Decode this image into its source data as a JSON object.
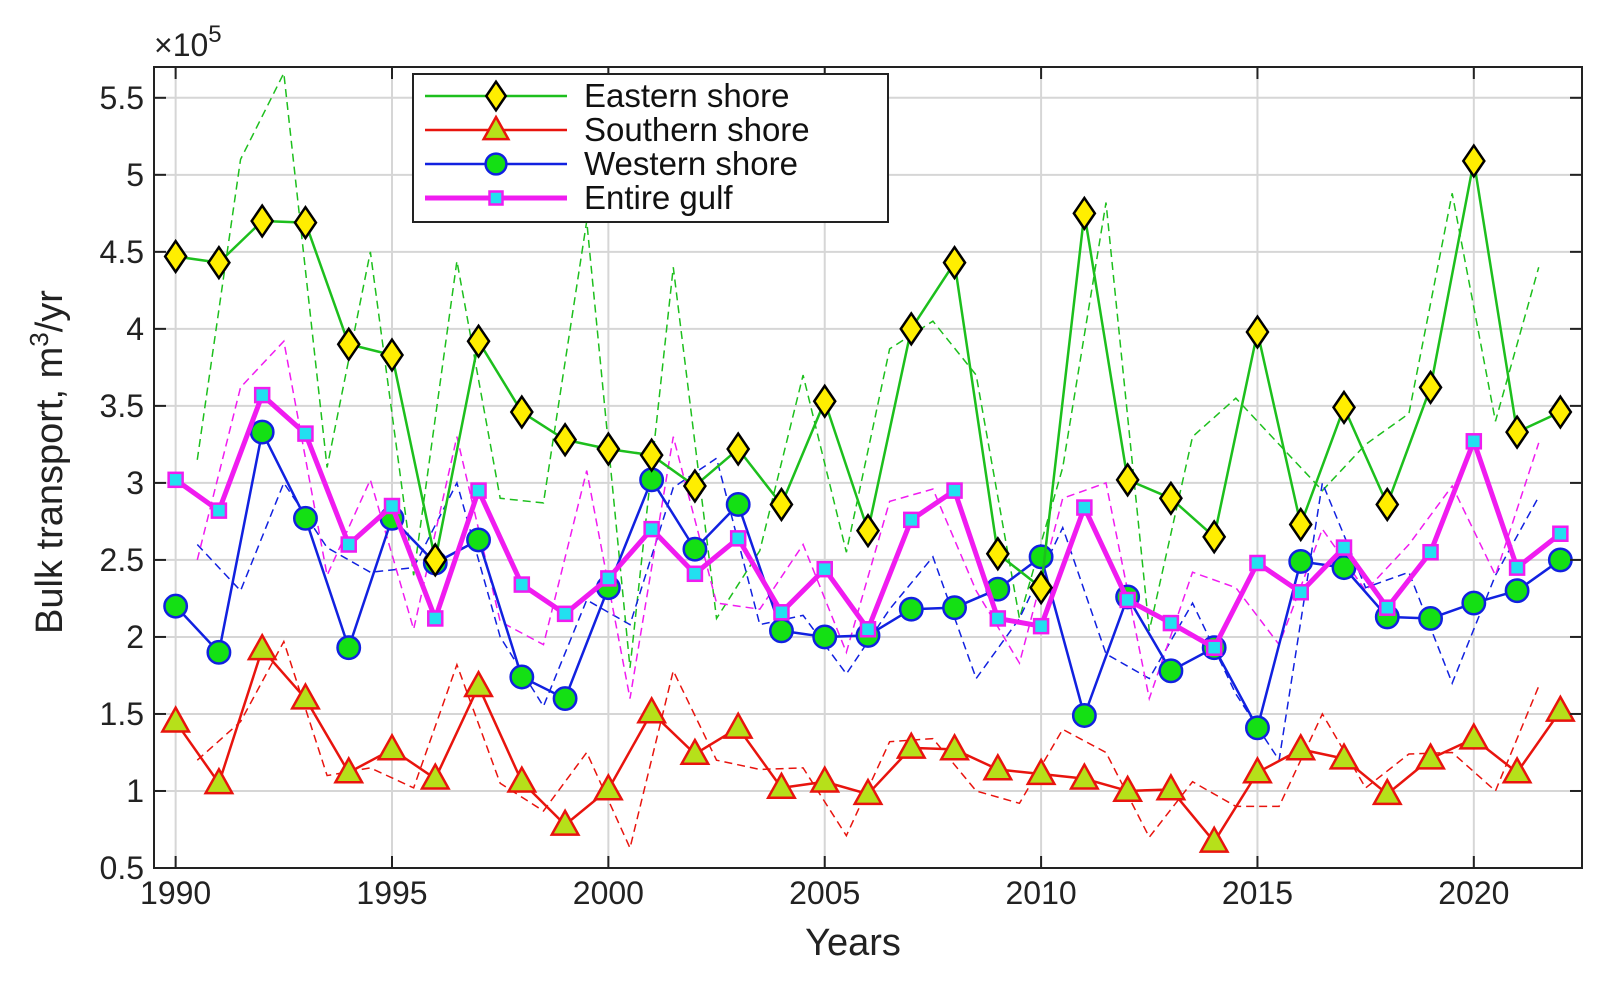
{
  "chart_data": {
    "type": "line",
    "xlabel": "Years",
    "ylabel_main": "Bulk transport, m",
    "ylabel_sup": "3",
    "ylabel_tail": "/yr",
    "exponent_prefix": "×10",
    "exponent_power": "5",
    "xlim": [
      1989.5,
      2022.5
    ],
    "ylim": [
      0.5,
      5.7
    ],
    "x_ticks": [
      1990,
      1995,
      2000,
      2005,
      2010,
      2015,
      2020
    ],
    "y_ticks": [
      0.5,
      1,
      1.5,
      2,
      2.5,
      3,
      3.5,
      4,
      4.5,
      5,
      5.5
    ],
    "grid": true,
    "legend_position": "top-center",
    "x": [
      1990,
      1991,
      1992,
      1993,
      1994,
      1995,
      1996,
      1997,
      1998,
      1999,
      2000,
      2001,
      2002,
      2003,
      2004,
      2005,
      2006,
      2007,
      2008,
      2009,
      2010,
      2011,
      2012,
      2013,
      2014,
      2015,
      2016,
      2017,
      2018,
      2019,
      2020,
      2021,
      2022
    ],
    "series": [
      {
        "name": "Eastern shore",
        "color": "#1dbf1d",
        "marker": "diamond",
        "marker_fill": "#ffee00",
        "marker_edge": "#000000",
        "line_width": 2.5,
        "values": [
          4.47,
          4.43,
          4.7,
          4.69,
          3.9,
          3.83,
          2.5,
          3.92,
          3.46,
          3.28,
          3.22,
          3.18,
          2.98,
          3.22,
          2.86,
          3.53,
          2.69,
          4.0,
          4.43,
          2.54,
          2.32,
          4.75,
          3.02,
          2.9,
          2.65,
          3.98,
          2.73,
          3.49,
          2.86,
          3.62,
          5.09,
          3.33,
          3.46
        ]
      },
      {
        "name": "Southern shore",
        "color": "#e8140e",
        "marker": "triangle",
        "marker_fill": "#b6e01a",
        "marker_edge": "#e8140e",
        "line_width": 2.5,
        "values": [
          1.45,
          1.05,
          1.92,
          1.6,
          1.12,
          1.27,
          1.08,
          1.68,
          1.06,
          0.78,
          1.01,
          1.51,
          1.24,
          1.41,
          1.02,
          1.06,
          0.98,
          1.28,
          1.27,
          1.14,
          1.11,
          1.08,
          1.0,
          1.01,
          0.67,
          1.12,
          1.27,
          1.21,
          0.98,
          1.21,
          1.34,
          1.12,
          1.52
        ]
      },
      {
        "name": "Western shore",
        "color": "#1121e0",
        "marker": "circle",
        "marker_fill": "#14e014",
        "marker_edge": "#1121e0",
        "line_width": 2.5,
        "values": [
          2.2,
          1.9,
          3.33,
          2.77,
          1.93,
          2.77,
          2.48,
          2.63,
          1.74,
          1.6,
          2.32,
          3.02,
          2.57,
          2.86,
          2.04,
          2.0,
          2.01,
          2.18,
          2.19,
          2.31,
          2.52,
          1.49,
          2.26,
          1.78,
          1.93,
          1.41,
          2.49,
          2.45,
          2.13,
          2.12,
          2.22,
          2.3,
          2.5
        ]
      },
      {
        "name": "Entire gulf",
        "color": "#f01cf0",
        "marker": "square",
        "marker_fill": "#22e0f0",
        "marker_edge": "#f01cf0",
        "line_width": 5,
        "values": [
          3.02,
          2.82,
          3.57,
          3.32,
          2.6,
          2.85,
          2.12,
          2.95,
          2.34,
          2.15,
          2.38,
          2.7,
          2.41,
          2.64,
          2.16,
          2.44,
          2.05,
          2.76,
          2.95,
          2.12,
          2.07,
          2.84,
          2.24,
          2.09,
          1.93,
          2.48,
          2.29,
          2.58,
          2.19,
          2.55,
          3.27,
          2.45,
          2.67
        ]
      }
    ],
    "dashed_series": [
      {
        "color": "#1dbf1d",
        "x": [
          1990.5,
          1991.5,
          1992.5,
          1993.5,
          1994.5,
          1995.5,
          1996.5,
          1997.5,
          1998.5,
          1999.5,
          2000.5,
          2001.5,
          2002.5,
          2003.5,
          2004.5,
          2005.5,
          2006.5,
          2007.5,
          2008.5,
          2009.5,
          2010.5,
          2011.5,
          2012.5,
          2013.5,
          2014.5,
          2015.5,
          2016.5,
          2017.5,
          2018.5,
          2019.5,
          2020.5,
          2021.5
        ],
        "values": [
          3.15,
          5.1,
          5.66,
          3.1,
          4.5,
          2.4,
          4.44,
          2.9,
          2.87,
          4.7,
          1.8,
          4.4,
          2.12,
          2.56,
          3.7,
          2.55,
          3.87,
          4.05,
          3.7,
          2.12,
          3.1,
          4.82,
          2.04,
          3.3,
          3.55,
          3.25,
          2.95,
          3.25,
          3.45,
          4.88,
          3.4,
          4.4
        ]
      },
      {
        "color": "#e8140e",
        "x": [
          1990.5,
          1991.5,
          1992.5,
          1993.5,
          1994.5,
          1995.5,
          1996.5,
          1997.5,
          1998.5,
          1999.5,
          2000.5,
          2001.5,
          2002.5,
          2003.5,
          2004.5,
          2005.5,
          2006.5,
          2007.5,
          2008.5,
          2009.5,
          2010.5,
          2011.5,
          2012.5,
          2013.5,
          2014.5,
          2015.5,
          2016.5,
          2017.5,
          2018.5,
          2019.5,
          2020.5,
          2021.5
        ],
        "values": [
          1.2,
          1.45,
          1.97,
          1.1,
          1.15,
          1.02,
          1.82,
          1.05,
          0.87,
          1.25,
          0.63,
          1.78,
          1.2,
          1.14,
          1.15,
          0.71,
          1.32,
          1.34,
          1.0,
          0.92,
          1.4,
          1.25,
          0.7,
          1.06,
          0.9,
          0.9,
          1.5,
          1.02,
          1.24,
          1.25,
          1.0,
          1.68
        ]
      },
      {
        "color": "#1121e0",
        "x": [
          1990.5,
          1991.5,
          1992.5,
          1993.5,
          1994.5,
          1995.5,
          1996.5,
          1997.5,
          1998.5,
          1999.5,
          2000.5,
          2001.5,
          2002.5,
          2003.5,
          2004.5,
          2005.5,
          2006.5,
          2007.5,
          2008.5,
          2009.5,
          2010.5,
          2011.5,
          2012.5,
          2013.5,
          2014.5,
          2015.5,
          2016.5,
          2017.5,
          2018.5,
          2019.5,
          2020.5,
          2021.5
        ],
        "values": [
          2.6,
          2.3,
          3.0,
          2.58,
          2.42,
          2.45,
          3.0,
          2.0,
          1.55,
          2.24,
          2.08,
          2.97,
          3.16,
          2.08,
          2.14,
          1.76,
          2.18,
          2.52,
          1.73,
          2.12,
          2.71,
          1.89,
          1.73,
          2.22,
          1.63,
          1.2,
          3.0,
          2.32,
          2.42,
          1.7,
          2.4,
          2.91
        ]
      },
      {
        "color": "#f01cf0",
        "x": [
          1990.5,
          1991.5,
          1992.5,
          1993.5,
          1994.5,
          1995.5,
          1996.5,
          1997.5,
          1998.5,
          1999.5,
          2000.5,
          2001.5,
          2002.5,
          2003.5,
          2004.5,
          2005.5,
          2006.5,
          2007.5,
          2008.5,
          2009.5,
          2010.5,
          2011.5,
          2012.5,
          2013.5,
          2014.5,
          2015.5,
          2016.5,
          2017.5,
          2018.5,
          2019.5,
          2020.5,
          2021.5
        ],
        "values": [
          2.5,
          3.62,
          3.92,
          2.4,
          3.02,
          2.05,
          3.3,
          2.1,
          1.95,
          3.08,
          1.6,
          3.3,
          2.22,
          2.18,
          2.6,
          1.9,
          2.88,
          2.96,
          2.3,
          1.83,
          2.9,
          3.0,
          1.6,
          2.42,
          2.32,
          1.95,
          2.7,
          2.3,
          2.6,
          2.98,
          2.4,
          3.26
        ]
      }
    ]
  }
}
